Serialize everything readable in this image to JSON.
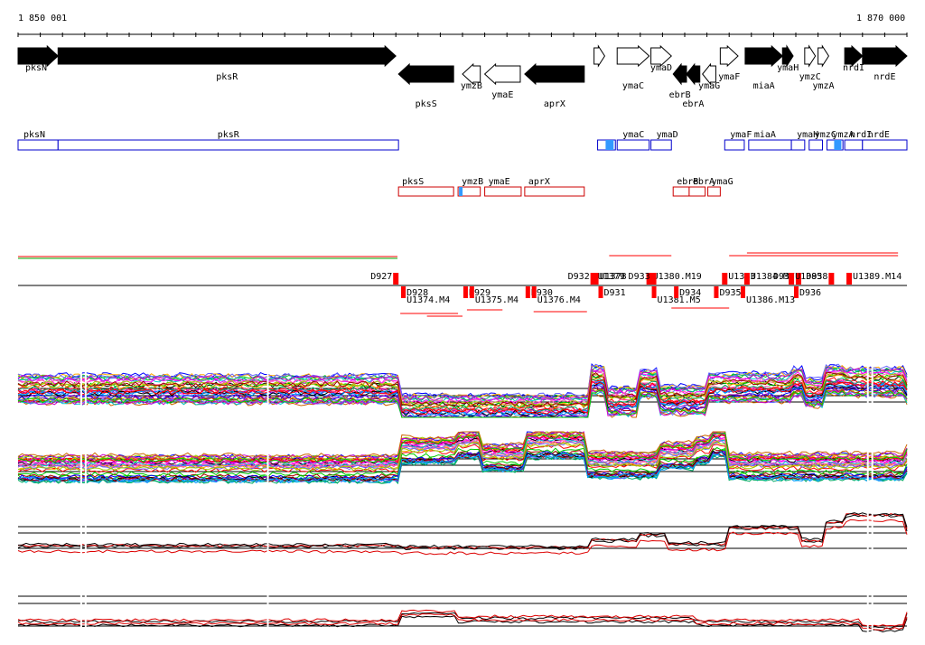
{
  "ruler": {
    "start_label": "1 850 001",
    "end_label": "1 870 000",
    "start_bp": 1850001,
    "end_bp": 1870000
  },
  "genes": [
    {
      "name": "pksN",
      "start": 0.0,
      "end": 0.045,
      "strand": "+",
      "filled": true,
      "label_at": "left"
    },
    {
      "name": "pksR",
      "start": 0.045,
      "end": 0.425,
      "strand": "+",
      "filled": true,
      "label_at": "center"
    },
    {
      "name": "pksS",
      "start": 0.428,
      "end": 0.49,
      "strand": "-",
      "filled": true,
      "label_at": "center"
    },
    {
      "name": "ymzB",
      "start": 0.5,
      "end": 0.52,
      "strand": "-",
      "filled": false,
      "label_at": "center"
    },
    {
      "name": "ymaE",
      "start": 0.525,
      "end": 0.565,
      "strand": "-",
      "filled": false,
      "label_at": "center"
    },
    {
      "name": "aprX",
      "start": 0.57,
      "end": 0.637,
      "strand": "-",
      "filled": true,
      "label_at": "center"
    },
    {
      "name": "",
      "start": 0.648,
      "end": 0.66,
      "strand": "+",
      "filled": false,
      "label_at": "none"
    },
    {
      "name": "ymaC",
      "start": 0.674,
      "end": 0.71,
      "strand": "+",
      "filled": false,
      "label_at": "center"
    },
    {
      "name": "ymaD",
      "start": 0.712,
      "end": 0.735,
      "strand": "+",
      "filled": false,
      "label_at": "center"
    },
    {
      "name": "ebrB",
      "start": 0.737,
      "end": 0.752,
      "strand": "-",
      "filled": true,
      "label_at": "center"
    },
    {
      "name": "ebrA",
      "start": 0.752,
      "end": 0.767,
      "strand": "-",
      "filled": true,
      "label_at": "center"
    },
    {
      "name": "ymaG",
      "start": 0.77,
      "end": 0.785,
      "strand": "-",
      "filled": false,
      "label_at": "center"
    },
    {
      "name": "ymaF",
      "start": 0.79,
      "end": 0.81,
      "strand": "+",
      "filled": false,
      "label_at": "center"
    },
    {
      "name": "miaA",
      "start": 0.818,
      "end": 0.86,
      "strand": "+",
      "filled": true,
      "label_at": "center"
    },
    {
      "name": "ymaH",
      "start": 0.86,
      "end": 0.872,
      "strand": "+",
      "filled": true,
      "label_at": "center"
    },
    {
      "name": "ymzC",
      "start": 0.885,
      "end": 0.897,
      "strand": "+",
      "filled": false,
      "label_at": "center"
    },
    {
      "name": "ymzA",
      "start": 0.9,
      "end": 0.912,
      "strand": "+",
      "filled": false,
      "label_at": "center"
    },
    {
      "name": "nrdI",
      "start": 0.93,
      "end": 0.95,
      "strand": "+",
      "filled": true,
      "label_at": "center"
    },
    {
      "name": "nrdE",
      "start": 0.95,
      "end": 1.0,
      "strand": "+",
      "filled": true,
      "label_at": "center"
    }
  ],
  "plus_boxes": [
    {
      "name": "pksN",
      "start": 0.0,
      "end": 0.045
    },
    {
      "name": "pksR",
      "start": 0.045,
      "end": 0.428
    },
    {
      "name": "",
      "start": 0.652,
      "end": 0.672,
      "highlight": true
    },
    {
      "name": "ymaC",
      "start": 0.674,
      "end": 0.71
    },
    {
      "name": "ymaD",
      "start": 0.712,
      "end": 0.735
    },
    {
      "name": "ymaF",
      "start": 0.795,
      "end": 0.817
    },
    {
      "name": "miaA",
      "start": 0.822,
      "end": 0.87
    },
    {
      "name": "ymaH",
      "start": 0.87,
      "end": 0.885
    },
    {
      "name": "ymzC",
      "start": 0.89,
      "end": 0.905
    },
    {
      "name": "ymzA",
      "start": 0.91,
      "end": 0.928,
      "highlight": true
    },
    {
      "name": "nrdI",
      "start": 0.93,
      "end": 0.95
    },
    {
      "name": "nrdE",
      "start": 0.95,
      "end": 1.0
    }
  ],
  "minus_boxes": [
    {
      "name": "pksS",
      "start": 0.428,
      "end": 0.49
    },
    {
      "name": "ymzB",
      "start": 0.495,
      "end": 0.52,
      "highlight": true
    },
    {
      "name": "ymaE",
      "start": 0.525,
      "end": 0.566
    },
    {
      "name": "aprX",
      "start": 0.57,
      "end": 0.637
    },
    {
      "name": "ebrB",
      "start": 0.737,
      "end": 0.755
    },
    {
      "name": "ebrA",
      "start": 0.755,
      "end": 0.773
    },
    {
      "name": "ymaG",
      "start": 0.776,
      "end": 0.79
    }
  ],
  "segments_upper": [
    {
      "label": "D927",
      "pos": 0.425
    },
    {
      "label": "D932",
      "pos": 0.647
    },
    {
      "label": "U1379",
      "pos": 0.648
    },
    {
      "label": "U1378",
      "pos": 0.65
    },
    {
      "label": "U1380.M19",
      "pos": 0.71
    },
    {
      "label": "D933",
      "pos": 0.715
    },
    {
      "label": "U1383",
      "pos": 0.795
    },
    {
      "label": "U1384.M4",
      "pos": 0.82
    },
    {
      "label": "D937",
      "pos": 0.878
    },
    {
      "label": "U1385",
      "pos": 0.87
    },
    {
      "label": "D938",
      "pos": 0.915
    },
    {
      "label": "U1389.M14",
      "pos": 0.935
    }
  ],
  "segments_lower": [
    {
      "label": "D928",
      "pos": 0.433
    },
    {
      "label": "U1374.M4",
      "pos": 0.433
    },
    {
      "label": "D929",
      "pos": 0.503
    },
    {
      "label": "U1375.M4",
      "pos": 0.51
    },
    {
      "label": "D930",
      "pos": 0.573
    },
    {
      "label": "U1376.M4",
      "pos": 0.58
    },
    {
      "label": "D931",
      "pos": 0.655
    },
    {
      "label": "U1381.M5",
      "pos": 0.715
    },
    {
      "label": "D934",
      "pos": 0.74
    },
    {
      "label": "D935",
      "pos": 0.785
    },
    {
      "label": "U1386.M13",
      "pos": 0.815
    },
    {
      "label": "D936",
      "pos": 0.875
    }
  ],
  "colors": {
    "gene_fill": "#000000",
    "plus_box": "#0000cc",
    "minus_box": "#cc0000",
    "highlight_blue": "#3399ff",
    "segment_red": "#ff0000",
    "profile_black": "#000000",
    "profile_red": "#dd0000"
  }
}
